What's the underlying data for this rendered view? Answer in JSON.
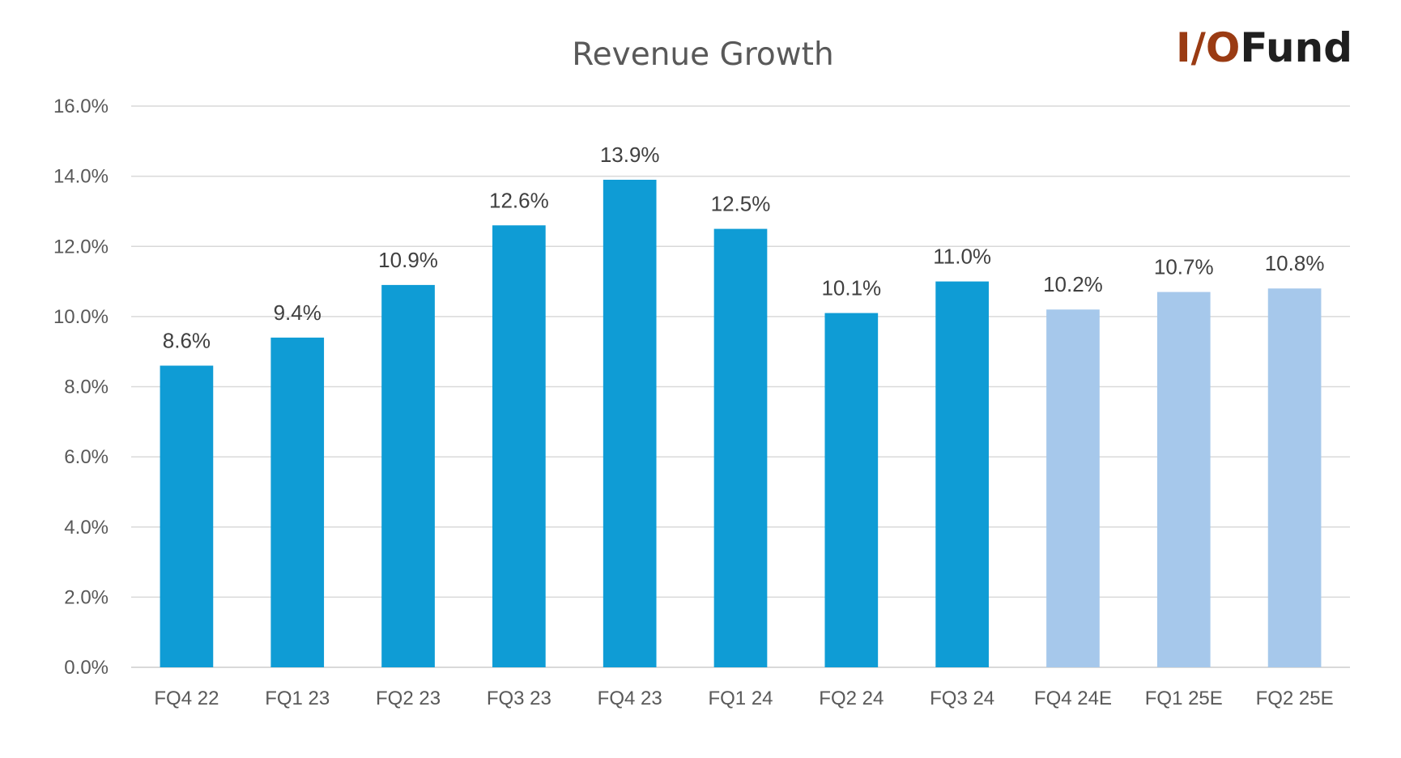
{
  "logo": {
    "part1": "I/O",
    "part2": "Fund"
  },
  "chart_data": {
    "type": "bar",
    "title": "Revenue Growth",
    "xlabel": "",
    "ylabel": "",
    "ylim": [
      0,
      16
    ],
    "yticks": [
      "0.0%",
      "2.0%",
      "4.0%",
      "6.0%",
      "8.0%",
      "10.0%",
      "12.0%",
      "14.0%",
      "16.0%"
    ],
    "grid": true,
    "legend": "none",
    "categories": [
      "FQ4 22",
      "FQ1 23",
      "FQ2 23",
      "FQ3 23",
      "FQ4 23",
      "FQ1 24",
      "FQ2 24",
      "FQ3 24",
      "FQ4 24E",
      "FQ1 25E",
      "FQ2 25E"
    ],
    "values": [
      8.6,
      9.4,
      10.9,
      12.6,
      13.9,
      12.5,
      10.1,
      11.0,
      10.2,
      10.7,
      10.8
    ],
    "data_labels": [
      "8.6%",
      "9.4%",
      "10.9%",
      "12.6%",
      "13.9%",
      "12.5%",
      "10.1%",
      "11.0%",
      "10.2%",
      "10.7%",
      "10.8%"
    ],
    "estimate": [
      false,
      false,
      false,
      false,
      false,
      false,
      false,
      false,
      true,
      true,
      true
    ],
    "colors": {
      "actual": "#0f9cd5",
      "estimate": "#a6c8eb",
      "grid": "#d9d9d9",
      "text": "#595959"
    }
  }
}
